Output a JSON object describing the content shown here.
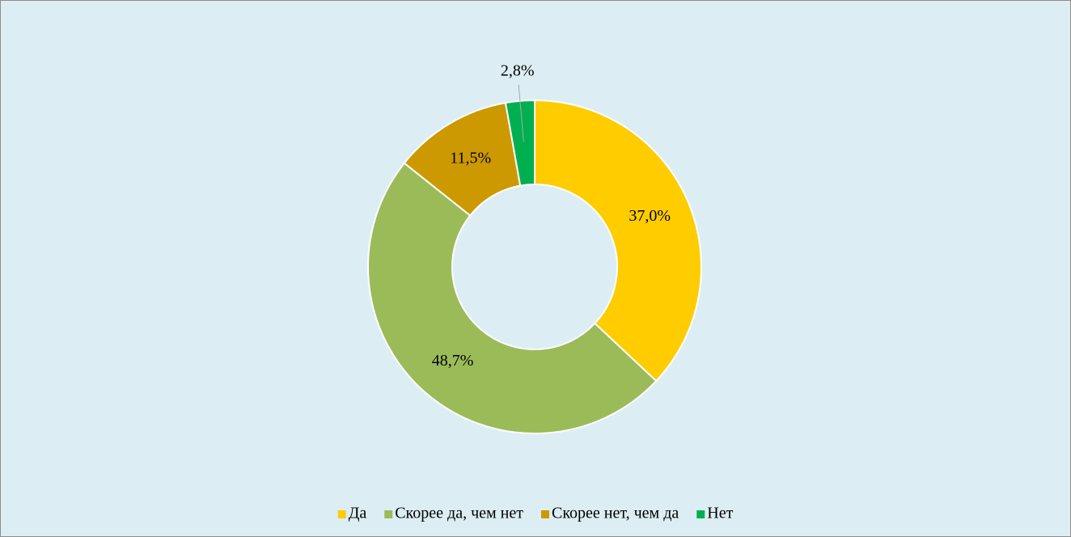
{
  "chart_data": {
    "type": "donut",
    "categories": [
      "Да",
      "Скорее да, чем нет",
      "Скорее нет, чем да",
      "Нет"
    ],
    "values": [
      37.0,
      48.7,
      11.5,
      2.8
    ],
    "value_labels": [
      "37,0%",
      "48,7%",
      "11,5%",
      "2,8%"
    ],
    "colors": [
      "#FFCC00",
      "#9BBB59",
      "#CC9900",
      "#00B050"
    ],
    "legend": "bottom"
  }
}
